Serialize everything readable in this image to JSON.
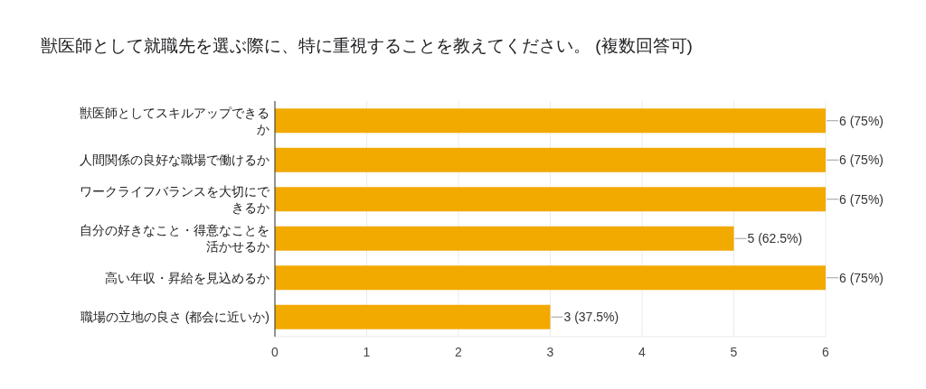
{
  "chart_data": {
    "type": "bar",
    "orientation": "horizontal",
    "title": "獣医師として就職先を選ぶ際に、特に重視することを教えてください。 (複数回答可)",
    "categories": [
      "獣医師としてスキルアップできるか",
      "人間関係の良好な職場で働けるか",
      "ワークライフバランスを大切にできるか",
      "自分の好きなこと・得意なことを活かせるか",
      "高い年収・昇給を見込めるか",
      "職場の立地の良さ (都会に近いか)"
    ],
    "series": [
      {
        "color": "#f2a900",
        "values": [
          6,
          6,
          6,
          5,
          6,
          3
        ],
        "value_labels": [
          "6 (75%)",
          "6 (75%)",
          "6 (75%)",
          "5 (62.5%)",
          "6 (75%)",
          "3 (37.5%)"
        ]
      }
    ],
    "xlim": [
      0,
      6
    ],
    "xticks": [
      0,
      1,
      2,
      3,
      4,
      5,
      6
    ],
    "grid": "x"
  }
}
